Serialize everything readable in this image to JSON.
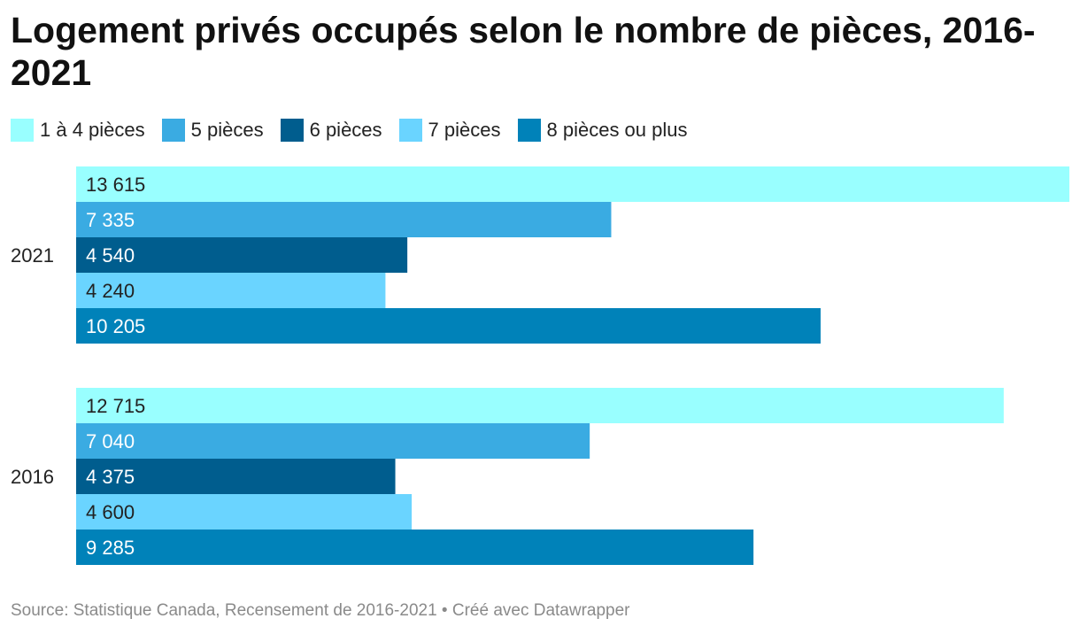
{
  "title": "Logement privés occupés selon le nombre de pièces, 2016-2021",
  "source": "Source: Statistique Canada, Recensement de 2016-2021 • Créé avec Datawrapper",
  "chart_data": {
    "type": "bar",
    "orientation": "horizontal",
    "title": "Logement privés occupés selon le nombre de pièces, 2016-2021",
    "xlabel": "",
    "ylabel": "",
    "xlim": [
      0,
      13615
    ],
    "grid": false,
    "legend_position": "top",
    "categories": [
      "2021",
      "2016"
    ],
    "series": [
      {
        "name": "1 à 4 pièces",
        "color": "#99FFFF",
        "text_color": "#222222",
        "values": [
          13615,
          12715
        ],
        "labels": [
          "13 615",
          "12 715"
        ]
      },
      {
        "name": "5 pièces",
        "color": "#3AABE2",
        "text_color": "#ffffff",
        "values": [
          7335,
          7040
        ],
        "labels": [
          "7 335",
          "7 040"
        ]
      },
      {
        "name": "6 pièces",
        "color": "#005D8E",
        "text_color": "#ffffff",
        "values": [
          4540,
          4375
        ],
        "labels": [
          "4 540",
          "4 375"
        ]
      },
      {
        "name": "7 pièces",
        "color": "#6AD4FF",
        "text_color": "#222222",
        "values": [
          4240,
          4600
        ],
        "labels": [
          "4 240",
          "4 600"
        ]
      },
      {
        "name": "8 pièces ou plus",
        "color": "#0082B9",
        "text_color": "#ffffff",
        "values": [
          10205,
          9285
        ],
        "labels": [
          "10 205",
          "9 285"
        ]
      }
    ]
  }
}
